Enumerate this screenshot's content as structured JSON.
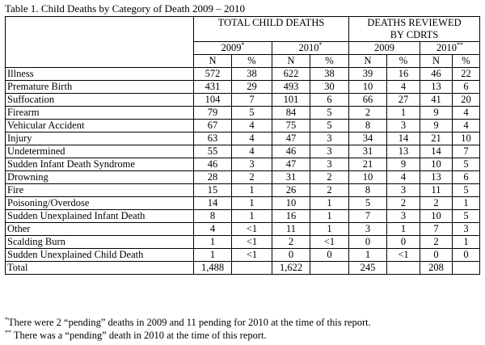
{
  "caption": "Table 1.  Child Deaths by Category of Death 2009 – 2010",
  "header": {
    "total_group": "TOTAL CHILD DEATHS",
    "reviewed_group_line1": "DEATHS REVIEWED",
    "reviewed_group_line2": "BY CDRTS",
    "years": [
      {
        "label": "2009",
        "mark": "*"
      },
      {
        "label": "2010",
        "mark": "*"
      },
      {
        "label": "2009",
        "mark": ""
      },
      {
        "label": "2010",
        "mark": "**"
      }
    ],
    "n_label": "N",
    "pct_label": "%"
  },
  "rows": [
    {
      "label": "Illness",
      "values": [
        "572",
        "38",
        "622",
        "38",
        "39",
        "16",
        "46",
        "22"
      ]
    },
    {
      "label": "Premature Birth",
      "values": [
        "431",
        "29",
        "493",
        "30",
        "10",
        "4",
        "13",
        "6"
      ]
    },
    {
      "label": "Suffocation",
      "values": [
        "104",
        "7",
        "101",
        "6",
        "66",
        "27",
        "41",
        "20"
      ]
    },
    {
      "label": "Firearm",
      "values": [
        "79",
        "5",
        "84",
        "5",
        "2",
        "1",
        "9",
        "4"
      ]
    },
    {
      "label": "Vehicular Accident",
      "values": [
        "67",
        "4",
        "75",
        "5",
        "8",
        "3",
        "9",
        "4"
      ]
    },
    {
      "label": "Injury",
      "values": [
        "63",
        "4",
        "47",
        "3",
        "34",
        "14",
        "21",
        "10"
      ]
    },
    {
      "label": "Undetermined",
      "values": [
        "55",
        "4",
        "46",
        "3",
        "31",
        "13",
        "14",
        "7"
      ]
    },
    {
      "label": "Sudden Infant Death Syndrome",
      "values": [
        "46",
        "3",
        "47",
        "3",
        "21",
        "9",
        "10",
        "5"
      ]
    },
    {
      "label": "Drowning",
      "values": [
        "28",
        "2",
        "31",
        "2",
        "10",
        "4",
        "13",
        "6"
      ]
    },
    {
      "label": "Fire",
      "values": [
        "15",
        "1",
        "26",
        "2",
        "8",
        "3",
        "11",
        "5"
      ]
    },
    {
      "label": "Poisoning/Overdose",
      "values": [
        "14",
        "1",
        "10",
        "1",
        "5",
        "2",
        "2",
        "1"
      ]
    },
    {
      "label": "Sudden Unexplained Infant Death",
      "values": [
        "8",
        "1",
        "16",
        "1",
        "7",
        "3",
        "10",
        "5"
      ]
    },
    {
      "label": "Other",
      "values": [
        "4",
        "<1",
        "11",
        "1",
        "3",
        "1",
        "7",
        "3"
      ]
    },
    {
      "label": "Scalding Burn",
      "values": [
        "1",
        "<1",
        "2",
        "<1",
        "0",
        "0",
        "2",
        "1"
      ]
    },
    {
      "label": "Sudden Unexplained Child Death",
      "values": [
        "1",
        "<1",
        "0",
        "0",
        "1",
        "<1",
        "0",
        "0"
      ]
    }
  ],
  "total": {
    "label": "Total",
    "n_2009": "1,488",
    "n_2010": "1,622",
    "r_2009": "245",
    "r_2010": "208"
  },
  "footnotes": [
    {
      "mark": "*",
      "text": "There were 2 “pending” deaths in 2009 and 11 pending for 2010 at the time of this report."
    },
    {
      "mark": "**",
      "text": " There was a “pending” death in 2010 at the time of this report."
    }
  ]
}
